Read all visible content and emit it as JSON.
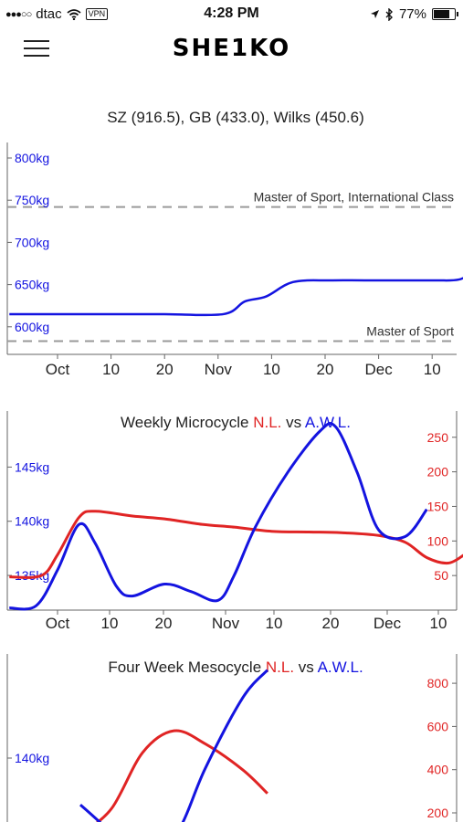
{
  "status": {
    "signal": "●●●○○",
    "carrier": "dtac",
    "vpn": "VPN",
    "time": "4:28 PM",
    "battery": "77%",
    "battery_level": 0.77
  },
  "nav": {
    "logo": "SHE1KO",
    "menu_icon": "hamburger-icon"
  },
  "colors": {
    "red": "#e02424",
    "blue": "#1414e0",
    "dash": "#9a9a9a"
  },
  "chart_data": [
    {
      "type": "line",
      "title": "SZ (916.5), GB (433.0), Wilks (450.6)",
      "x_ticks": [
        "Oct",
        "10",
        "20",
        "Nov",
        "10",
        "20",
        "Dec",
        "10"
      ],
      "y_ticks": [
        "600kg",
        "650kg",
        "700kg",
        "750kg",
        "800kg"
      ],
      "ylim": [
        585,
        810
      ],
      "reference_lines": [
        {
          "label": "Master of Sport, International Class",
          "value": 742
        },
        {
          "label": "Master of Sport",
          "value": 583
        }
      ],
      "series": [
        {
          "color": "blue",
          "points": [
            [
              -9,
              615
            ],
            [
              10,
              615
            ],
            [
              20,
              615
            ],
            [
              31,
              615
            ],
            [
              35,
              630
            ],
            [
              39,
              636
            ],
            [
              44,
              653
            ],
            [
              51,
              655
            ],
            [
              58,
              655
            ],
            [
              70,
              655
            ],
            [
              75,
              656
            ],
            [
              78,
              666
            ]
          ]
        }
      ]
    },
    {
      "type": "line",
      "title_prefix": "Weekly Microcycle ",
      "title_red": "N.L.",
      "title_mid": " vs ",
      "title_blue": "A.W.L.",
      "x_ticks": [
        "Oct",
        "10",
        "20",
        "Nov",
        "10",
        "20",
        "Dec",
        "10"
      ],
      "y_left_ticks": [
        "135kg",
        "140kg",
        "145kg"
      ],
      "y_right_ticks": [
        "50",
        "100",
        "150",
        "200",
        "250"
      ],
      "ylim_left": [
        131.8,
        149.5
      ],
      "ylim_right": [
        0,
        270
      ],
      "series": [
        {
          "name": "N.L.",
          "color": "red",
          "axis": "right",
          "points": [
            [
              -9,
              48
            ],
            [
              -3,
              50
            ],
            [
              0,
              80
            ],
            [
              4,
              134
            ],
            [
              7,
              143
            ],
            [
              14,
              136
            ],
            [
              20,
              132
            ],
            [
              27,
              124
            ],
            [
              33,
              120
            ],
            [
              40,
              114
            ],
            [
              47,
              113
            ],
            [
              53,
              112
            ],
            [
              60,
              108
            ],
            [
              65,
              98
            ],
            [
              69,
              76
            ],
            [
              73,
              68
            ],
            [
              76,
              80
            ]
          ]
        },
        {
          "name": "A.W.L.",
          "color": "blue",
          "axis": "left",
          "points": [
            [
              -9,
              132.0
            ],
            [
              -4,
              132.2
            ],
            [
              0,
              135.5
            ],
            [
              4,
              139.7
            ],
            [
              7,
              138.0
            ],
            [
              11,
              134.0
            ],
            [
              14,
              133.1
            ],
            [
              20,
              134.2
            ],
            [
              25,
              133.5
            ],
            [
              30,
              132.7
            ],
            [
              33,
              135.0
            ],
            [
              37,
              139.5
            ],
            [
              43,
              144.5
            ],
            [
              49,
              148.3
            ],
            [
              52,
              148.7
            ],
            [
              56,
              144.5
            ],
            [
              60,
              139.2
            ],
            [
              65,
              138.6
            ],
            [
              69,
              141.1
            ]
          ]
        }
      ]
    },
    {
      "type": "line",
      "title_prefix": "Four Week Mesocycle ",
      "title_red": "N.L.",
      "title_mid": " vs ",
      "title_blue": "A.W.L.",
      "y_left_ticks": [
        "140kg"
      ],
      "y_right_ticks": [
        "200",
        "400",
        "600",
        "800"
      ],
      "ylim_left": [
        133.5,
        149
      ],
      "ylim_right": [
        145,
        890
      ],
      "series": [
        {
          "name": "N.L.",
          "color": "red",
          "axis": "right",
          "points": [
            [
              0,
              100
            ],
            [
              0.5,
              220
            ],
            [
              1.0,
              480
            ],
            [
              1.5,
              580
            ],
            [
              2.0,
              520
            ],
            [
              2.6,
              400
            ],
            [
              3.0,
              290
            ]
          ]
        },
        {
          "name": "A.W.L.",
          "color": "blue",
          "axis": "left",
          "points": [
            [
              0,
              136.5
            ],
            [
              0.4,
              134.8
            ],
            [
              0.8,
              132.8
            ],
            [
              1.2,
              133.0
            ],
            [
              1.6,
              134.8
            ],
            [
              2.0,
              139.2
            ],
            [
              2.6,
              144.5
            ],
            [
              3.0,
              146.6
            ]
          ]
        }
      ]
    }
  ]
}
